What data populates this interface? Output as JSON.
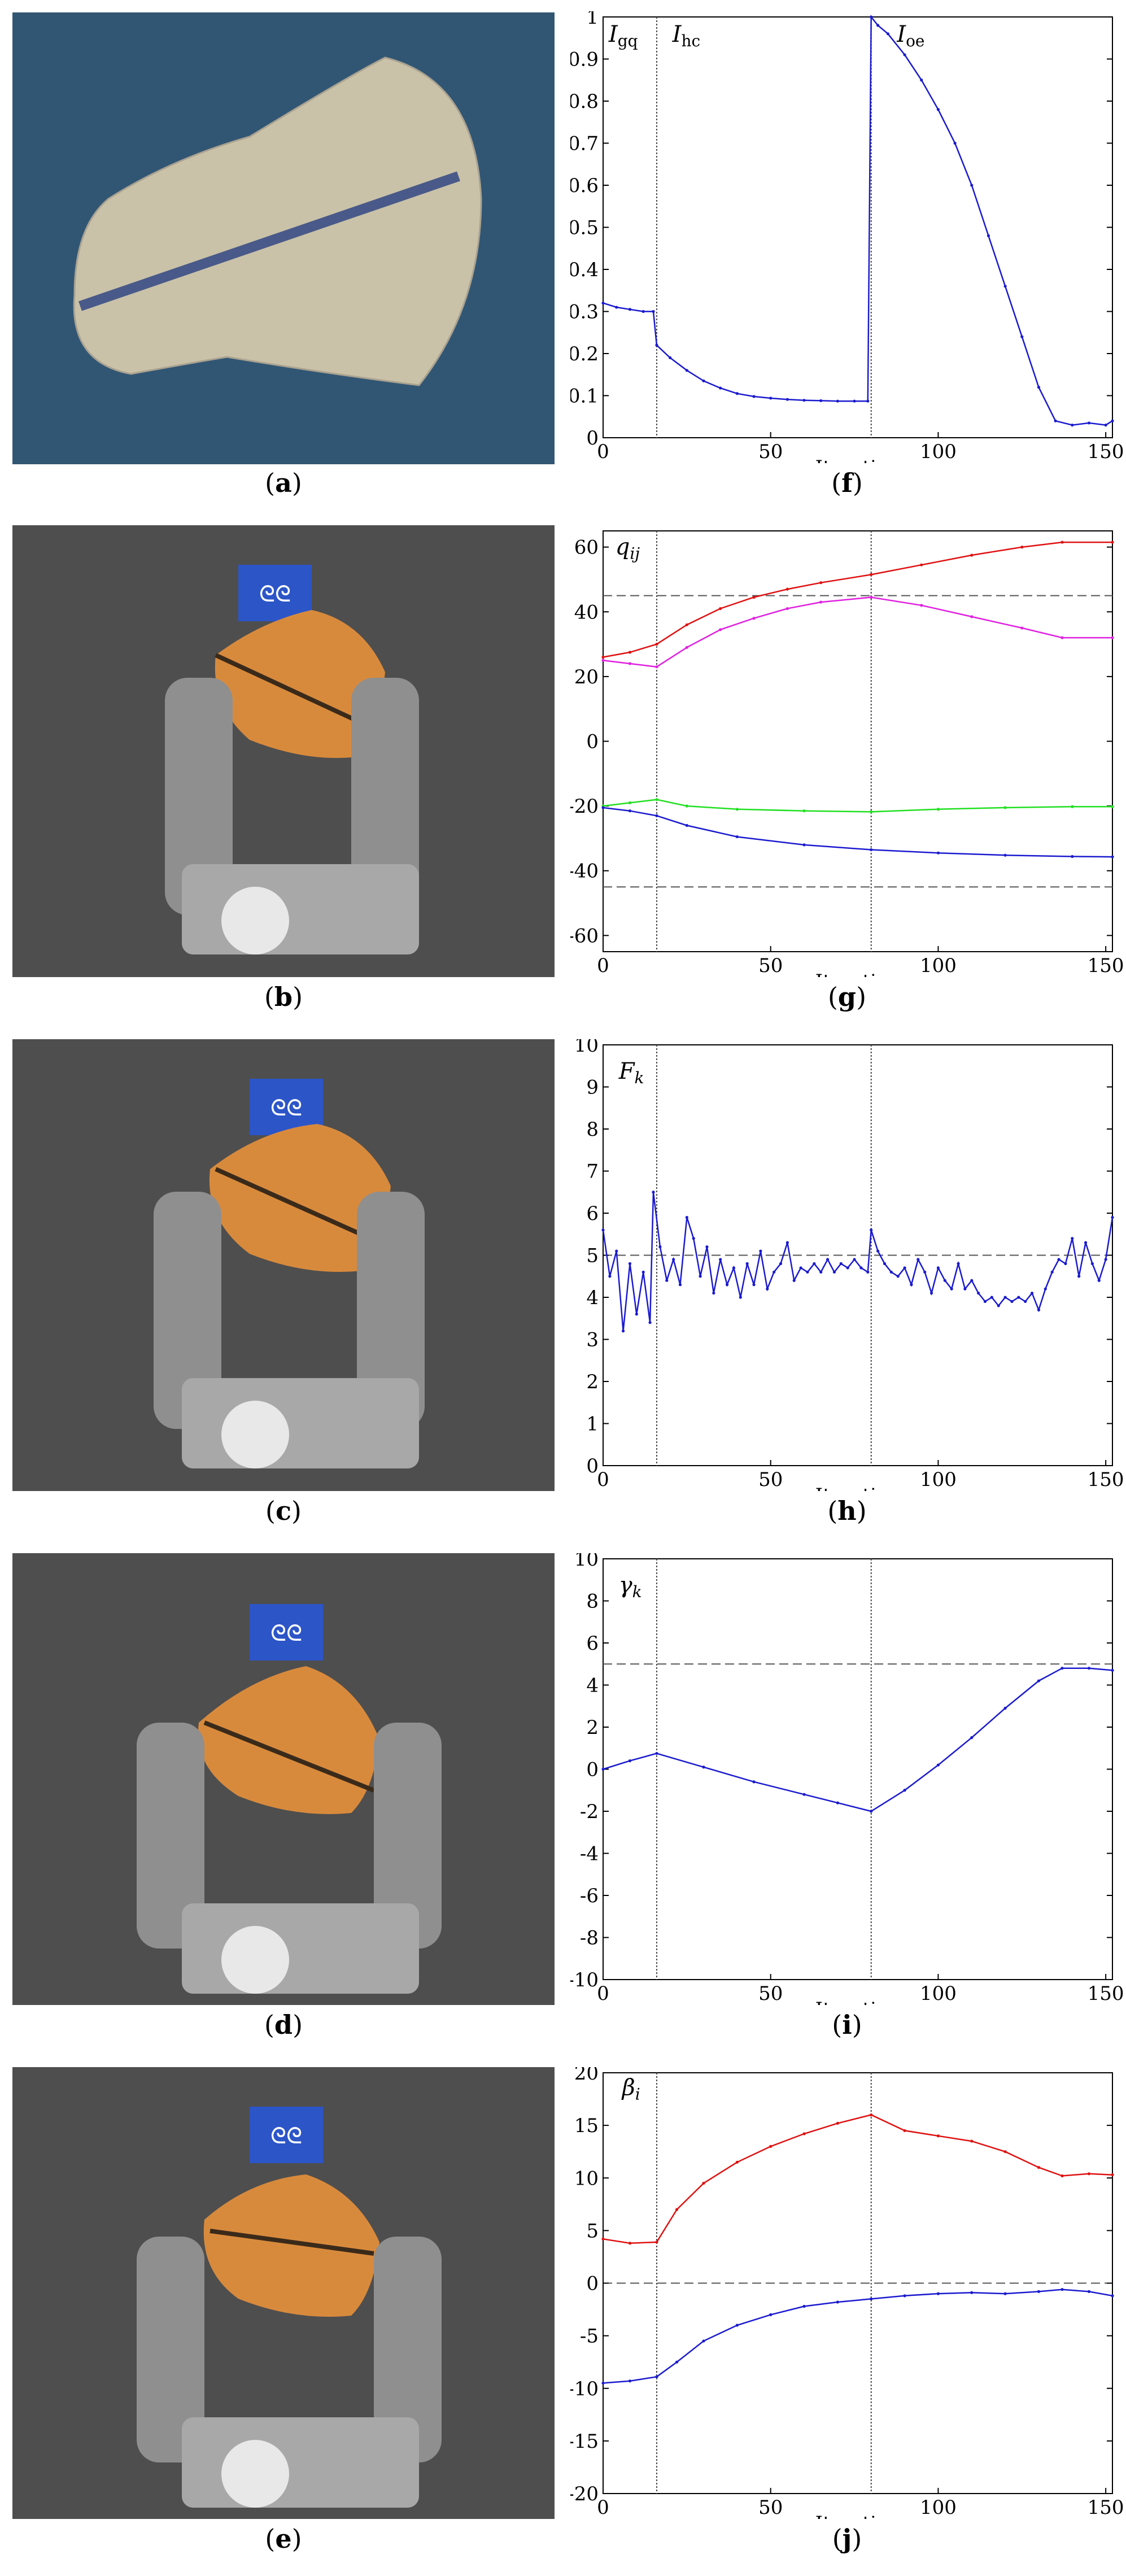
{
  "captions": [
    "a",
    "b",
    "c",
    "d",
    "e",
    "f",
    "g",
    "h",
    "i",
    "j"
  ],
  "photos": [
    {
      "label": "flat paper cutout with blue line on blue cloth"
    },
    {
      "label": "robot hand holding orange object"
    },
    {
      "label": "robot hand holding orange object"
    },
    {
      "label": "robot hand holding orange object"
    },
    {
      "label": "robot hand holding orange object"
    }
  ],
  "colors": {
    "blue": "#1a1ad0",
    "red": "#e01010",
    "magenta": "#e020e0",
    "green": "#20e020",
    "dash": "#555555"
  },
  "chart_data": [
    {
      "type": "line",
      "xlabel": "Iteration",
      "ylabel": "",
      "xlim": [
        0,
        152
      ],
      "ylim": [
        0,
        1
      ],
      "xticks": [
        0,
        50,
        100,
        150
      ],
      "yticks": [
        0,
        0.1,
        0.2,
        0.3,
        0.4,
        0.5,
        0.6,
        0.7,
        0.8,
        0.9,
        1
      ],
      "ytick_labels": [
        "0",
        "0.1",
        "0.2",
        "0.3",
        "0.4",
        "0.5",
        "0.6",
        "0.7",
        "0.8",
        "0.9",
        "1"
      ],
      "vlines": [
        16,
        80
      ],
      "hlines": [],
      "annotations": [
        {
          "text": "I",
          "sub": "gq",
          "x": 1
        },
        {
          "text": "I",
          "sub": "hc",
          "x": 20
        },
        {
          "text": "I",
          "sub": "oe",
          "x": 87
        }
      ],
      "series": [
        {
          "color": "blue",
          "points": [
            [
              0,
              0.32
            ],
            [
              4,
              0.31
            ],
            [
              8,
              0.305
            ],
            [
              12,
              0.3
            ],
            [
              15,
              0.3
            ],
            [
              16,
              0.22
            ],
            [
              20,
              0.19
            ],
            [
              25,
              0.16
            ],
            [
              30,
              0.135
            ],
            [
              35,
              0.118
            ],
            [
              40,
              0.105
            ],
            [
              45,
              0.098
            ],
            [
              50,
              0.094
            ],
            [
              55,
              0.091
            ],
            [
              60,
              0.089
            ],
            [
              65,
              0.088
            ],
            [
              70,
              0.087
            ],
            [
              75,
              0.087
            ],
            [
              79,
              0.087
            ],
            [
              80,
              1.0
            ],
            [
              82,
              0.98
            ],
            [
              85,
              0.96
            ],
            [
              90,
              0.91
            ],
            [
              95,
              0.85
            ],
            [
              100,
              0.78
            ],
            [
              105,
              0.7
            ],
            [
              110,
              0.6
            ],
            [
              115,
              0.48
            ],
            [
              120,
              0.36
            ],
            [
              125,
              0.24
            ],
            [
              130,
              0.12
            ],
            [
              135,
              0.04
            ],
            [
              140,
              0.03
            ],
            [
              145,
              0.035
            ],
            [
              150,
              0.03
            ],
            [
              152,
              0.04
            ]
          ]
        }
      ]
    },
    {
      "type": "line",
      "xlabel": "Iteration",
      "ylabel": "q_ij",
      "xlim": [
        0,
        152
      ],
      "ylim": [
        -65,
        65
      ],
      "xticks": [
        0,
        50,
        100,
        150
      ],
      "yticks": [
        -60,
        -40,
        -20,
        0,
        20,
        40,
        60
      ],
      "ytick_labels": [
        "-60",
        "-40",
        "-20",
        "0",
        "20",
        "40",
        "60"
      ],
      "vlines": [
        16,
        80
      ],
      "hlines": [
        45,
        -45
      ],
      "annotations": [
        {
          "text": "q",
          "sub": "ij",
          "x": 3,
          "y": 63
        }
      ],
      "series": [
        {
          "color": "red",
          "points": [
            [
              0,
              26
            ],
            [
              8,
              27.5
            ],
            [
              16,
              30
            ],
            [
              25,
              36
            ],
            [
              35,
              41
            ],
            [
              45,
              44.5
            ],
            [
              55,
              47
            ],
            [
              65,
              49
            ],
            [
              80,
              51.5
            ],
            [
              95,
              54.5
            ],
            [
              110,
              57.5
            ],
            [
              125,
              60
            ],
            [
              137,
              61.5
            ],
            [
              152,
              61.5
            ]
          ]
        },
        {
          "color": "magenta",
          "points": [
            [
              0,
              25
            ],
            [
              8,
              24
            ],
            [
              16,
              23
            ],
            [
              25,
              29
            ],
            [
              35,
              34.5
            ],
            [
              45,
              38
            ],
            [
              55,
              41
            ],
            [
              65,
              43
            ],
            [
              80,
              44.5
            ],
            [
              95,
              42
            ],
            [
              110,
              38.5
            ],
            [
              125,
              35
            ],
            [
              137,
              32
            ],
            [
              152,
              32
            ]
          ]
        },
        {
          "color": "green",
          "points": [
            [
              0,
              -20
            ],
            [
              8,
              -19
            ],
            [
              16,
              -18
            ],
            [
              25,
              -20
            ],
            [
              40,
              -21
            ],
            [
              60,
              -21.5
            ],
            [
              80,
              -21.8
            ],
            [
              100,
              -21
            ],
            [
              120,
              -20.5
            ],
            [
              140,
              -20.2
            ],
            [
              152,
              -20.2
            ]
          ]
        },
        {
          "color": "blue",
          "points": [
            [
              0,
              -20.5
            ],
            [
              8,
              -21.5
            ],
            [
              16,
              -23
            ],
            [
              25,
              -26
            ],
            [
              40,
              -29.5
            ],
            [
              60,
              -32
            ],
            [
              80,
              -33.5
            ],
            [
              100,
              -34.5
            ],
            [
              120,
              -35.2
            ],
            [
              140,
              -35.6
            ],
            [
              152,
              -35.7
            ]
          ]
        }
      ]
    },
    {
      "type": "line",
      "xlabel": "Iteration",
      "ylabel": "F_k",
      "xlim": [
        0,
        152
      ],
      "ylim": [
        0,
        10
      ],
      "xticks": [
        0,
        50,
        100,
        150
      ],
      "yticks": [
        0,
        1,
        2,
        3,
        4,
        5,
        6,
        7,
        8,
        9,
        10
      ],
      "ytick_labels": [
        "0",
        "1",
        "2",
        "3",
        "4",
        "5",
        "6",
        "7",
        "8",
        "9",
        "10"
      ],
      "vlines": [
        16,
        80
      ],
      "hlines": [
        5
      ],
      "annotations": [
        {
          "text": "F",
          "sub": "k",
          "x": 4,
          "y": 9.6
        }
      ],
      "series": [
        {
          "color": "blue",
          "points": [
            [
              0,
              5.6
            ],
            [
              2,
              4.5
            ],
            [
              4,
              5.1
            ],
            [
              6,
              3.2
            ],
            [
              8,
              4.8
            ],
            [
              10,
              3.6
            ],
            [
              12,
              4.6
            ],
            [
              14,
              3.4
            ],
            [
              15,
              6.5
            ],
            [
              17,
              5.2
            ],
            [
              19,
              4.4
            ],
            [
              21,
              4.9
            ],
            [
              23,
              4.3
            ],
            [
              25,
              5.9
            ],
            [
              27,
              5.4
            ],
            [
              29,
              4.5
            ],
            [
              31,
              5.2
            ],
            [
              33,
              4.1
            ],
            [
              35,
              4.9
            ],
            [
              37,
              4.3
            ],
            [
              39,
              4.7
            ],
            [
              41,
              4.0
            ],
            [
              43,
              4.8
            ],
            [
              45,
              4.3
            ],
            [
              47,
              5.1
            ],
            [
              49,
              4.2
            ],
            [
              51,
              4.6
            ],
            [
              53,
              4.8
            ],
            [
              55,
              5.3
            ],
            [
              57,
              4.4
            ],
            [
              59,
              4.7
            ],
            [
              61,
              4.6
            ],
            [
              63,
              4.8
            ],
            [
              65,
              4.6
            ],
            [
              67,
              4.9
            ],
            [
              69,
              4.6
            ],
            [
              71,
              4.8
            ],
            [
              73,
              4.7
            ],
            [
              75,
              4.9
            ],
            [
              77,
              4.7
            ],
            [
              79,
              4.6
            ],
            [
              80,
              5.6
            ],
            [
              82,
              5.1
            ],
            [
              84,
              4.8
            ],
            [
              86,
              4.6
            ],
            [
              88,
              4.5
            ],
            [
              90,
              4.7
            ],
            [
              92,
              4.3
            ],
            [
              94,
              4.9
            ],
            [
              96,
              4.6
            ],
            [
              98,
              4.1
            ],
            [
              100,
              4.7
            ],
            [
              102,
              4.4
            ],
            [
              104,
              4.2
            ],
            [
              106,
              4.8
            ],
            [
              108,
              4.2
            ],
            [
              110,
              4.4
            ],
            [
              112,
              4.1
            ],
            [
              114,
              3.9
            ],
            [
              116,
              4.0
            ],
            [
              118,
              3.8
            ],
            [
              120,
              4.0
            ],
            [
              122,
              3.9
            ],
            [
              124,
              4.0
            ],
            [
              126,
              3.9
            ],
            [
              128,
              4.1
            ],
            [
              130,
              3.7
            ],
            [
              132,
              4.2
            ],
            [
              134,
              4.6
            ],
            [
              136,
              4.9
            ],
            [
              138,
              4.8
            ],
            [
              140,
              5.4
            ],
            [
              142,
              4.5
            ],
            [
              144,
              5.3
            ],
            [
              146,
              4.8
            ],
            [
              148,
              4.4
            ],
            [
              150,
              4.9
            ],
            [
              152,
              5.9
            ]
          ]
        }
      ]
    },
    {
      "type": "line",
      "xlabel": "Iteration",
      "ylabel": "γ_k",
      "xlim": [
        0,
        152
      ],
      "ylim": [
        -10,
        10
      ],
      "xticks": [
        0,
        50,
        100,
        150
      ],
      "yticks": [
        -10,
        -8,
        -6,
        -4,
        -2,
        0,
        2,
        4,
        6,
        8,
        10
      ],
      "ytick_labels": [
        "-10",
        "-8",
        "-6",
        "-4",
        "-2",
        "0",
        "2",
        "4",
        "6",
        "8",
        "10"
      ],
      "vlines": [
        16,
        80
      ],
      "hlines": [
        5
      ],
      "annotations": [
        {
          "text": "γ",
          "sub": "k",
          "x": 4,
          "y": 9.2
        }
      ],
      "series": [
        {
          "color": "blue",
          "points": [
            [
              0,
              0
            ],
            [
              8,
              0.4
            ],
            [
              16,
              0.75
            ],
            [
              30,
              0.1
            ],
            [
              45,
              -0.6
            ],
            [
              60,
              -1.2
            ],
            [
              70,
              -1.6
            ],
            [
              80,
              -2.0
            ],
            [
              90,
              -1.0
            ],
            [
              100,
              0.2
            ],
            [
              110,
              1.5
            ],
            [
              120,
              2.9
            ],
            [
              130,
              4.2
            ],
            [
              137,
              4.8
            ],
            [
              145,
              4.8
            ],
            [
              152,
              4.7
            ]
          ]
        }
      ]
    },
    {
      "type": "line",
      "xlabel": "Iteration",
      "ylabel": "β_i",
      "xlim": [
        0,
        152
      ],
      "ylim": [
        -20,
        20
      ],
      "xticks": [
        0,
        50,
        100,
        150
      ],
      "yticks": [
        -20,
        -15,
        -10,
        -5,
        0,
        5,
        10,
        15,
        20
      ],
      "ytick_labels": [
        "-20",
        "-15",
        "-10",
        "-5",
        "0",
        "5",
        "10",
        "15",
        "20"
      ],
      "vlines": [
        16,
        80
      ],
      "hlines": [
        0
      ],
      "annotations": [
        {
          "text": "β",
          "sub": "i",
          "x": 5,
          "y": 19.5
        }
      ],
      "series": [
        {
          "color": "red",
          "points": [
            [
              0,
              4.2
            ],
            [
              8,
              3.8
            ],
            [
              16,
              3.9
            ],
            [
              22,
              7
            ],
            [
              30,
              9.5
            ],
            [
              40,
              11.5
            ],
            [
              50,
              13
            ],
            [
              60,
              14.2
            ],
            [
              70,
              15.2
            ],
            [
              80,
              16
            ],
            [
              90,
              14.5
            ],
            [
              100,
              14
            ],
            [
              110,
              13.5
            ],
            [
              120,
              12.5
            ],
            [
              130,
              11
            ],
            [
              137,
              10.2
            ],
            [
              145,
              10.4
            ],
            [
              152,
              10.3
            ]
          ]
        },
        {
          "color": "blue",
          "points": [
            [
              0,
              -9.5
            ],
            [
              8,
              -9.3
            ],
            [
              16,
              -8.9
            ],
            [
              22,
              -7.5
            ],
            [
              30,
              -5.5
            ],
            [
              40,
              -4
            ],
            [
              50,
              -3
            ],
            [
              60,
              -2.2
            ],
            [
              70,
              -1.8
            ],
            [
              80,
              -1.5
            ],
            [
              90,
              -1.2
            ],
            [
              100,
              -1.0
            ],
            [
              110,
              -0.9
            ],
            [
              120,
              -1.0
            ],
            [
              130,
              -0.8
            ],
            [
              137,
              -0.6
            ],
            [
              145,
              -0.8
            ],
            [
              152,
              -1.2
            ]
          ]
        }
      ]
    }
  ]
}
